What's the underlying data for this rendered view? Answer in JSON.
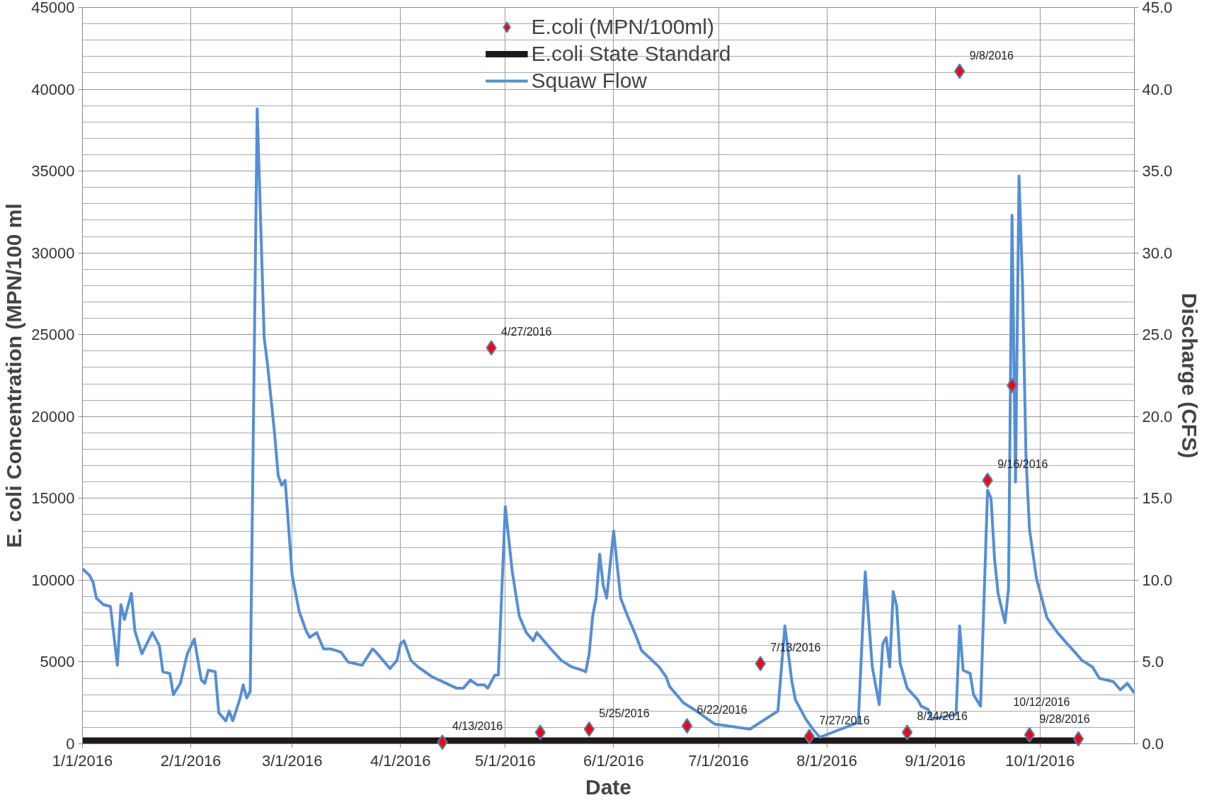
{
  "chart_data": {
    "type": "scatter",
    "xlabel": "Date",
    "ylabel": "E. coli Concentration (MPN/100 ml",
    "y2label": "Discharge (CFS)",
    "xlim": [
      "2016-01-01",
      "2016-10-28"
    ],
    "xticks": [
      {
        "value": "2016-01-01",
        "label": "1/1/2016"
      },
      {
        "value": "2016-02-01",
        "label": "2/1/2016"
      },
      {
        "value": "2016-03-01",
        "label": "3/1/2016"
      },
      {
        "value": "2016-04-01",
        "label": "4/1/2016"
      },
      {
        "value": "2016-05-01",
        "label": "5/1/2016"
      },
      {
        "value": "2016-06-01",
        "label": "6/1/2016"
      },
      {
        "value": "2016-07-01",
        "label": "7/1/2016"
      },
      {
        "value": "2016-08-01",
        "label": "8/1/2016"
      },
      {
        "value": "2016-09-01",
        "label": "9/1/2016"
      },
      {
        "value": "2016-10-01",
        "label": "10/1/2016"
      }
    ],
    "ylim": [
      0,
      45000
    ],
    "yticks": [
      0,
      5000,
      10000,
      15000,
      20000,
      25000,
      30000,
      35000,
      40000,
      45000
    ],
    "y2lim": [
      0,
      45
    ],
    "y2ticks": [
      {
        "value": 0,
        "label": "0.0"
      },
      {
        "value": 5,
        "label": "5.0"
      },
      {
        "value": 10,
        "label": "10.0"
      },
      {
        "value": 15,
        "label": "15.0"
      },
      {
        "value": 20,
        "label": "20.0"
      },
      {
        "value": 25,
        "label": "25.0"
      },
      {
        "value": 30,
        "label": "30.0"
      },
      {
        "value": 35,
        "label": "35.0"
      },
      {
        "value": 40,
        "label": "40.0"
      },
      {
        "value": 45,
        "label": "45.0"
      }
    ],
    "grid": true,
    "legend": "top",
    "series": [
      {
        "name": "E.coli (MPN/100ml)",
        "marker": "diamond",
        "color": "#ff0000",
        "x": [
          "2016-04-13",
          "2016-04-27",
          "2016-05-11",
          "2016-05-25",
          "2016-06-22",
          "2016-07-13",
          "2016-07-27",
          "2016-08-24",
          "2016-09-08",
          "2016-09-16",
          "2016-09-23",
          "2016-09-28",
          "2016-10-12"
        ],
        "values": [
          100,
          24200,
          700,
          900,
          1100,
          4900,
          450,
          700,
          41100,
          16100,
          21900,
          550,
          300
        ]
      },
      {
        "name": "E.coli State Standard",
        "type": "line",
        "color": "#1f1a17",
        "x": [
          "2016-01-01",
          "2016-10-12"
        ],
        "values": [
          200,
          200
        ]
      },
      {
        "name": "Squaw Flow",
        "type": "line",
        "axis": "y2",
        "color": "#558ed5",
        "x": [
          "2016-01-01",
          "2016-01-03",
          "2016-01-04",
          "2016-01-05",
          "2016-01-07",
          "2016-01-09",
          "2016-01-11",
          "2016-01-12",
          "2016-01-13",
          "2016-01-15",
          "2016-01-16",
          "2016-01-18",
          "2016-01-21",
          "2016-01-23",
          "2016-01-24",
          "2016-01-26",
          "2016-01-27",
          "2016-01-29",
          "2016-01-31",
          "2016-02-02",
          "2016-02-04",
          "2016-02-05",
          "2016-02-06",
          "2016-02-08",
          "2016-02-09",
          "2016-02-11",
          "2016-02-12",
          "2016-02-13",
          "2016-02-15",
          "2016-02-16",
          "2016-02-17",
          "2016-02-18",
          "2016-02-20",
          "2016-02-22",
          "2016-02-23",
          "2016-02-25",
          "2016-02-26",
          "2016-02-27",
          "2016-02-28",
          "2016-03-01",
          "2016-03-03",
          "2016-03-05",
          "2016-03-06",
          "2016-03-08",
          "2016-03-10",
          "2016-03-12",
          "2016-03-15",
          "2016-03-17",
          "2016-03-21",
          "2016-03-24",
          "2016-03-25",
          "2016-03-27",
          "2016-03-29",
          "2016-03-31",
          "2016-04-01",
          "2016-04-02",
          "2016-04-04",
          "2016-04-06",
          "2016-04-10",
          "2016-04-13",
          "2016-04-17",
          "2016-04-19",
          "2016-04-21",
          "2016-04-23",
          "2016-04-25",
          "2016-04-26",
          "2016-04-28",
          "2016-04-29",
          "2016-05-01",
          "2016-05-03",
          "2016-05-05",
          "2016-05-07",
          "2016-05-09",
          "2016-05-10",
          "2016-05-12",
          "2016-05-14",
          "2016-05-17",
          "2016-05-20",
          "2016-05-23",
          "2016-05-24",
          "2016-05-25",
          "2016-05-26",
          "2016-05-27",
          "2016-05-28",
          "2016-05-29",
          "2016-05-30",
          "2016-06-01",
          "2016-06-03",
          "2016-06-05",
          "2016-06-07",
          "2016-06-09",
          "2016-06-12",
          "2016-06-14",
          "2016-06-16",
          "2016-06-17",
          "2016-06-19",
          "2016-06-21",
          "2016-06-24",
          "2016-06-26",
          "2016-06-30",
          "2016-07-10",
          "2016-07-18",
          "2016-07-20",
          "2016-07-22",
          "2016-07-23",
          "2016-07-26",
          "2016-07-28",
          "2016-07-30",
          "2016-08-10",
          "2016-08-12",
          "2016-08-14",
          "2016-08-16",
          "2016-08-17",
          "2016-08-18",
          "2016-08-19",
          "2016-08-20",
          "2016-08-21",
          "2016-08-22",
          "2016-08-24",
          "2016-08-27",
          "2016-08-28",
          "2016-08-30",
          "2016-08-31",
          "2016-09-07",
          "2016-09-08",
          "2016-09-09",
          "2016-09-11",
          "2016-09-12",
          "2016-09-14",
          "2016-09-16",
          "2016-09-17",
          "2016-09-18",
          "2016-09-19",
          "2016-09-21",
          "2016-09-22",
          "2016-09-23",
          "2016-09-24",
          "2016-09-25",
          "2016-09-26",
          "2016-09-27",
          "2016-09-28",
          "2016-09-30",
          "2016-10-01",
          "2016-10-03",
          "2016-10-06",
          "2016-10-08",
          "2016-10-11",
          "2016-10-13",
          "2016-10-16",
          "2016-10-18",
          "2016-10-22",
          "2016-10-24",
          "2016-10-26",
          "2016-10-28"
        ],
        "values": [
          10.7,
          10.3,
          9.9,
          8.9,
          8.5,
          8.4,
          4.8,
          8.5,
          7.6,
          9.2,
          6.9,
          5.5,
          6.8,
          6.0,
          4.4,
          4.3,
          3.0,
          3.7,
          5.5,
          6.4,
          3.9,
          3.7,
          4.5,
          4.4,
          1.9,
          1.4,
          2.0,
          1.4,
          2.7,
          3.6,
          2.8,
          3.2,
          38.8,
          24.8,
          23.1,
          18.9,
          16.4,
          15.8,
          16.1,
          10.3,
          8.1,
          6.9,
          6.5,
          6.8,
          5.8,
          5.8,
          5.6,
          5.0,
          4.8,
          5.8,
          5.6,
          5.1,
          4.6,
          5.1,
          6.1,
          6.3,
          5.1,
          4.7,
          4.1,
          3.8,
          3.4,
          3.4,
          3.9,
          3.6,
          3.6,
          3.4,
          4.2,
          4.2,
          14.5,
          10.5,
          7.8,
          6.8,
          6.3,
          6.8,
          6.3,
          5.8,
          5.1,
          4.7,
          4.5,
          4.4,
          5.5,
          7.8,
          8.9,
          11.6,
          9.7,
          8.9,
          13.0,
          8.9,
          7.8,
          6.8,
          5.7,
          5.1,
          4.7,
          4.1,
          3.5,
          3.0,
          2.5,
          2.1,
          1.8,
          1.2,
          0.9,
          2.0,
          7.2,
          3.8,
          2.7,
          1.5,
          0.9,
          0.4,
          1.3,
          10.5,
          4.7,
          2.4,
          6.1,
          6.5,
          4.7,
          9.3,
          8.4,
          4.9,
          3.4,
          2.7,
          2.3,
          2.1,
          1.5,
          1.8,
          7.2,
          4.5,
          4.3,
          3.0,
          2.3,
          15.5,
          15.0,
          11.3,
          9.2,
          7.4,
          9.5,
          32.3,
          16.0,
          34.7,
          28.1,
          17.5,
          13.1,
          10.1,
          9.3,
          7.7,
          6.8,
          6.3,
          5.6,
          5.1,
          4.7,
          4.0,
          3.8,
          3.3,
          3.7,
          3.1
        ]
      }
    ],
    "annotations": [
      {
        "text": "4/13/2016",
        "x": "2016-04-13",
        "y": 100
      },
      {
        "text": "4/27/2016",
        "x": "2016-04-27",
        "y": 24200
      },
      {
        "text": "5/25/2016",
        "x": "2016-05-25",
        "y": 900
      },
      {
        "text": "6/22/2016",
        "x": "2016-06-22",
        "y": 1100
      },
      {
        "text": "7/13/2016",
        "x": "2016-07-13",
        "y": 4900
      },
      {
        "text": "7/27/2016",
        "x": "2016-07-27",
        "y": 450
      },
      {
        "text": "8/24/2016",
        "x": "2016-08-24",
        "y": 700
      },
      {
        "text": "9/8/2016",
        "x": "2016-09-08",
        "y": 41100
      },
      {
        "text": "9/16/2016",
        "x": "2016-09-16",
        "y": 16100
      },
      {
        "text": "9/28/2016",
        "x": "2016-09-28",
        "y": 550
      },
      {
        "text": "10/12/2016",
        "x": "2016-10-12",
        "y": 300
      }
    ]
  }
}
